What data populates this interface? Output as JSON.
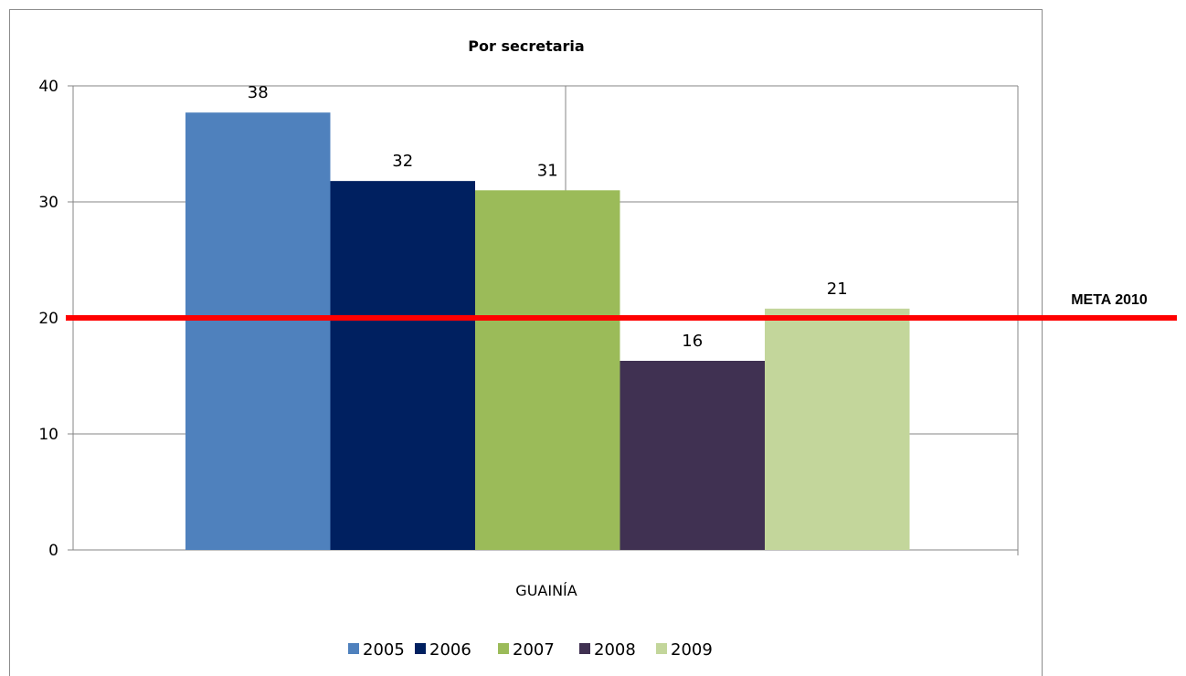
{
  "chart_data": {
    "type": "bar",
    "title": "Por secretaria",
    "categories": [
      "GUAINÍA"
    ],
    "series": [
      {
        "name": "2005",
        "values": [
          38
        ],
        "color": "#4f81bd",
        "value_exact": 37.7
      },
      {
        "name": "2006",
        "values": [
          32
        ],
        "color": "#002060",
        "value_exact": 31.8
      },
      {
        "name": "2007",
        "values": [
          31
        ],
        "color": "#9bbb59",
        "value_exact": 31.0
      },
      {
        "name": "2008",
        "values": [
          16
        ],
        "color": "#403152",
        "value_exact": 16.3
      },
      {
        "name": "2009",
        "values": [
          21
        ],
        "color": "#c3d69b",
        "value_exact": 20.8
      }
    ],
    "ylim": [
      0,
      40
    ],
    "yticks": [
      0,
      10,
      20,
      30,
      40
    ],
    "grid": true,
    "legend": "bottom",
    "reference_line": {
      "label": "META 2010",
      "value": 20,
      "color": "#ff0000"
    }
  }
}
